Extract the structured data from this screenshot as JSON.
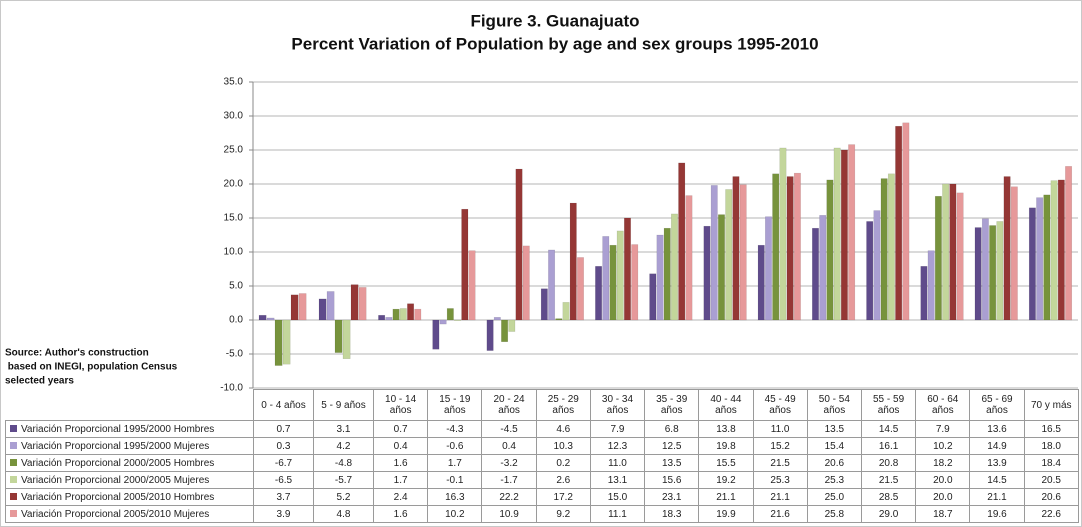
{
  "chart_data": {
    "type": "bar",
    "title": "Figure 3. Guanajuato",
    "subtitle": "Percent Variation of Population by age and sex groups 1995-2010",
    "annotation": [
      "Source: Author's construction",
      " based on INEGI, population Census",
      "selected years"
    ],
    "categories": [
      "0 - 4 años",
      "5 - 9 años",
      "10 - 14 años",
      "15 - 19 años",
      "20 - 24 años",
      "25 - 29 años",
      "30 - 34 años",
      "35 - 39 años",
      "40 - 44 años",
      "45 - 49 años",
      "50 - 54 años",
      "55 - 59 años",
      "60 - 64 años",
      "65 - 69 años",
      "70 y más"
    ],
    "series": [
      {
        "name": "Variación Proporcional 1995/2000 Hombres",
        "color": "#5f4b8b",
        "values": [
          0.7,
          3.1,
          0.7,
          -4.3,
          -4.5,
          4.6,
          7.9,
          6.8,
          13.8,
          11.0,
          13.5,
          14.5,
          7.9,
          13.6,
          16.5
        ],
        "value_labels": [
          "0.7",
          "3.1",
          "0.7",
          "-4.3",
          "-4.5",
          "4.6",
          "7.9",
          "6.8",
          "13.8",
          "11.0",
          "13.5",
          "14.5",
          "7.9",
          "13.6",
          "16.5"
        ]
      },
      {
        "name": "Variación Proporcional 1995/2000 Mujeres",
        "color": "#aa9fd2",
        "values": [
          0.3,
          4.2,
          0.4,
          -0.6,
          0.4,
          10.3,
          12.3,
          12.5,
          19.8,
          15.2,
          15.4,
          16.1,
          10.2,
          14.9,
          18.0
        ],
        "value_labels": [
          "0.3",
          "4.2",
          "0.4",
          "-0.6",
          "0.4",
          "10.3",
          "12.3",
          "12.5",
          "19.8",
          "15.2",
          "15.4",
          "16.1",
          "10.2",
          "14.9",
          "18.0"
        ]
      },
      {
        "name": "Variación Proporcional 2000/2005  Hombres",
        "color": "#77933c",
        "values": [
          -6.7,
          -4.8,
          1.6,
          1.7,
          -3.2,
          0.2,
          11.0,
          13.5,
          15.5,
          21.5,
          20.6,
          20.8,
          18.2,
          13.9,
          18.4
        ],
        "value_labels": [
          "-6.7",
          "-4.8",
          "1.6",
          "1.7",
          "-3.2",
          "0.2",
          "11.0",
          "13.5",
          "15.5",
          "21.5",
          "20.6",
          "20.8",
          "18.2",
          "13.9",
          "18.4"
        ]
      },
      {
        "name": "Variación Proporcional 2000/2005  Mujeres",
        "color": "#c3d69b",
        "values": [
          -6.5,
          -5.7,
          1.7,
          -0.1,
          -1.7,
          2.6,
          13.1,
          15.6,
          19.2,
          25.3,
          25.3,
          21.5,
          20.0,
          14.5,
          20.5
        ],
        "value_labels": [
          "-6.5",
          "-5.7",
          "1.7",
          "-0.1",
          "-1.7",
          "2.6",
          "13.1",
          "15.6",
          "19.2",
          "25.3",
          "25.3",
          "21.5",
          "20.0",
          "14.5",
          "20.5"
        ]
      },
      {
        "name": "Variación Proporcional 2005/2010  Hombres",
        "color": "#953735",
        "values": [
          3.7,
          5.2,
          2.4,
          16.3,
          22.2,
          17.2,
          15.0,
          23.1,
          21.1,
          21.1,
          25.0,
          28.5,
          20.0,
          21.1,
          20.6
        ],
        "value_labels": [
          "3.7",
          "5.2",
          "2.4",
          "16.3",
          "22.2",
          "17.2",
          "15.0",
          "23.1",
          "21.1",
          "21.1",
          "25.0",
          "28.5",
          "20.0",
          "21.1",
          "20.6"
        ]
      },
      {
        "name": "Variación Proporcional 2005/2010  Mujeres",
        "color": "#e6999a",
        "values": [
          3.9,
          4.8,
          1.6,
          10.2,
          10.9,
          9.2,
          11.1,
          18.3,
          19.9,
          21.6,
          25.8,
          29.0,
          18.7,
          19.6,
          22.6
        ],
        "value_labels": [
          "3.9",
          "4.8",
          "1.6",
          "10.2",
          "10.9",
          "9.2",
          "11.1",
          "18.3",
          "19.9",
          "21.6",
          "25.8",
          "29.0",
          "18.7",
          "19.6",
          "22.6"
        ]
      }
    ],
    "ylim": [
      -10,
      35
    ],
    "yticks": [
      {
        "value": -10,
        "label": "-10.0"
      },
      {
        "value": -5,
        "label": "-5.0"
      },
      {
        "value": 0,
        "label": "0.0"
      },
      {
        "value": 5,
        "label": "5.0"
      },
      {
        "value": 10,
        "label": "10.0"
      },
      {
        "value": 15,
        "label": "15.0"
      },
      {
        "value": 20,
        "label": "20.0"
      },
      {
        "value": 25,
        "label": "25.0"
      },
      {
        "value": 30,
        "label": "30.0"
      },
      {
        "value": 35,
        "label": "35.0"
      }
    ],
    "grid": true
  }
}
